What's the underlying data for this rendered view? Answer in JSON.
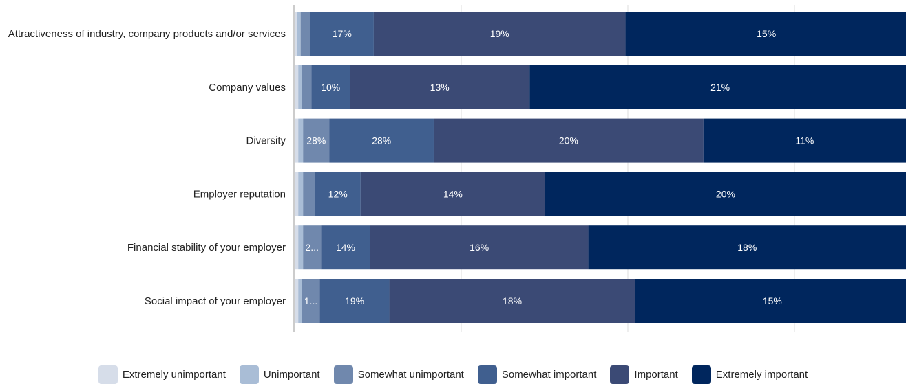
{
  "chart_data": {
    "type": "bar",
    "orientation": "horizontal",
    "stacked": true,
    "grid": true,
    "legend_position": "bottom",
    "categories": [
      "Attractiveness of industry, company products and/or services",
      "Company values",
      "Diversity",
      "Employer reputation",
      "Financial stability of your employer",
      "Social impact of your employer"
    ],
    "series": [
      {
        "name": "Extremely unimportant",
        "color": "#d6dde9",
        "values": [
          0.2,
          0.3,
          0.3,
          0.3,
          0.3,
          0.3
        ],
        "labels": [
          "",
          "",
          "",
          "",
          "",
          ""
        ]
      },
      {
        "name": "Unimportant",
        "color": "#a9bdd6",
        "values": [
          0.3,
          0.3,
          0.4,
          0.4,
          0.4,
          0.3
        ],
        "labels": [
          "",
          "",
          "",
          "",
          "",
          ""
        ]
      },
      {
        "name": "Somewhat unimportant",
        "color": "#7088ad",
        "values": [
          0.8,
          0.8,
          2.2,
          1.0,
          1.5,
          1.5
        ],
        "labels": [
          "",
          "",
          "28%",
          "",
          "2...",
          "1..."
        ]
      },
      {
        "name": "Somewhat important",
        "color": "#405f8f",
        "values": [
          5.3,
          3.2,
          8.7,
          3.8,
          4.1,
          5.8
        ],
        "labels": [
          "17%",
          "10%",
          "28%",
          "12%",
          "14%",
          "19%"
        ]
      },
      {
        "name": "Important",
        "color": "#3b4a75",
        "values": [
          21.0,
          15.0,
          22.5,
          15.4,
          18.2,
          20.5
        ],
        "labels": [
          "19%",
          "13%",
          "20%",
          "14%",
          "16%",
          "18%"
        ]
      },
      {
        "name": "Extremely important",
        "color": "#00265d",
        "values": [
          23.5,
          31.8,
          16.9,
          30.1,
          26.5,
          22.9
        ],
        "labels": [
          "15%",
          "21%",
          "11%",
          "20%",
          "18%",
          "15%"
        ]
      }
    ],
    "xlim": [
      0,
      51
    ]
  }
}
